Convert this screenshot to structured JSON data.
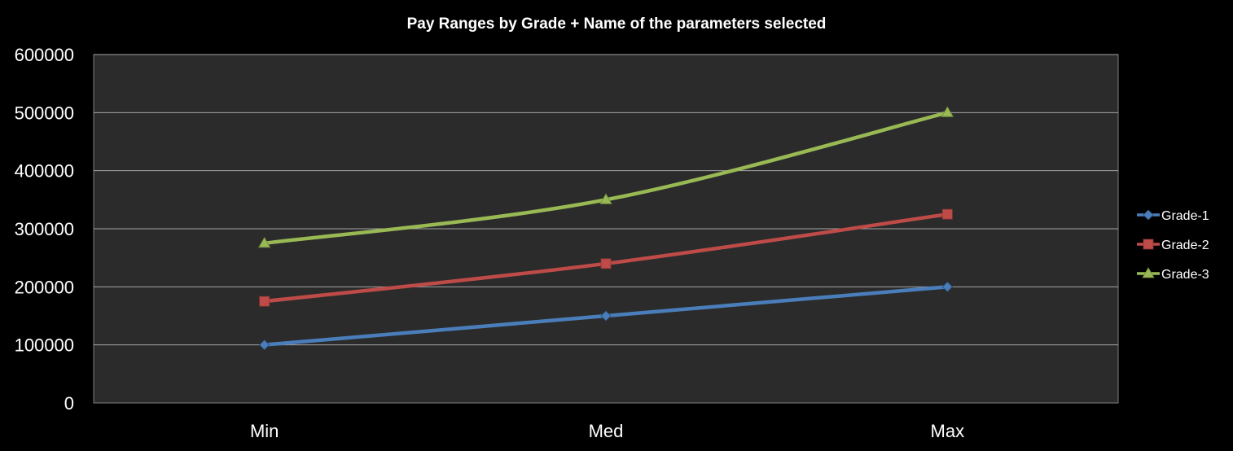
{
  "chart_data": {
    "type": "line",
    "title": "Pay Ranges by Grade + Name of the parameters selected",
    "xlabel": "",
    "ylabel": "",
    "categories": [
      "Min",
      "Med",
      "Max"
    ],
    "ylim": [
      0,
      600000
    ],
    "yticks": [
      "0",
      "100000",
      "200000",
      "300000",
      "400000",
      "500000",
      "600000"
    ],
    "grid": true,
    "legend_position": "right",
    "series": [
      {
        "name": "Grade-1",
        "values": [
          100000,
          150000,
          200000
        ],
        "color": "#4a7ebb",
        "marker": "diamond"
      },
      {
        "name": "Grade-2",
        "values": [
          175000,
          240000,
          325000
        ],
        "color": "#be4b48",
        "marker": "square"
      },
      {
        "name": "Grade-3",
        "values": [
          275000,
          350000,
          500000
        ],
        "color": "#98b954",
        "marker": "triangle"
      }
    ],
    "colors": {
      "background": "#000000",
      "plot_area": "#2b2b2b",
      "gridline": "#a6a6a6",
      "text": "#ffffff"
    }
  }
}
